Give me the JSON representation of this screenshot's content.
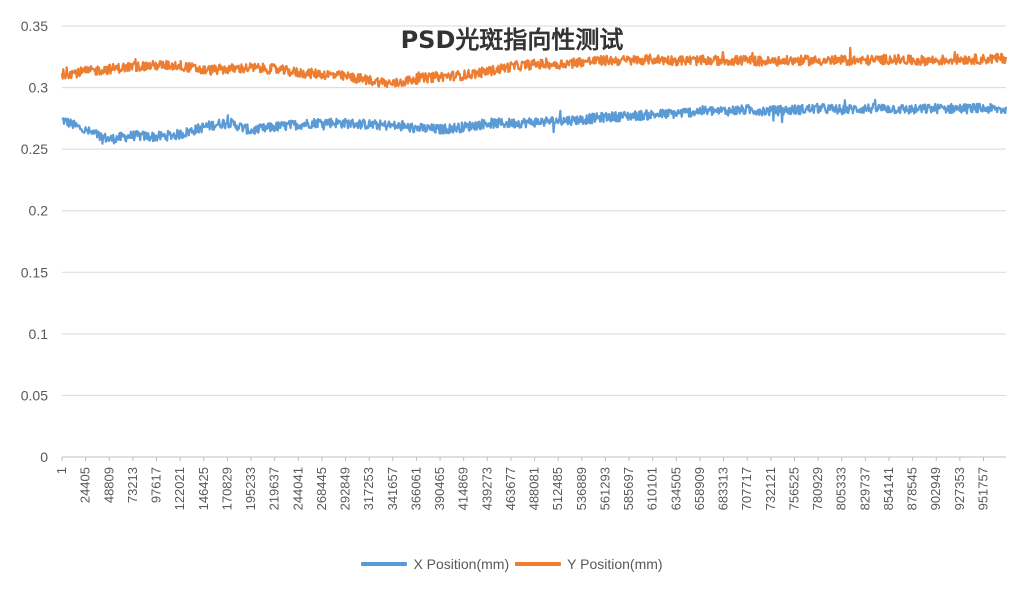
{
  "chart_data": {
    "type": "line",
    "title": "PSD光斑指向性测试",
    "xlabel": "",
    "ylabel": "",
    "ylim": [
      0,
      0.35
    ],
    "yticks": [
      "0",
      "0.05",
      "0.1",
      "0.15",
      "0.2",
      "0.25",
      "0.3",
      "0.35"
    ],
    "x_tick_labels": [
      "1",
      "24405",
      "48809",
      "73213",
      "97617",
      "122021",
      "146425",
      "170829",
      "195233",
      "219637",
      "244041",
      "268445",
      "292849",
      "317253",
      "341657",
      "366061",
      "390465",
      "414869",
      "439273",
      "463677",
      "488081",
      "512485",
      "536889",
      "561293",
      "585697",
      "610101",
      "634505",
      "658909",
      "683313",
      "707717",
      "732121",
      "756525",
      "780929",
      "805333",
      "829737",
      "854141",
      "878545",
      "902949",
      "927353",
      "951757"
    ],
    "x_range": [
      1,
      975000
    ],
    "series": [
      {
        "name": "X Position(mm)",
        "color": "#5b9bd5",
        "noise": 0.004,
        "x": [
          1,
          24405,
          48809,
          73213,
          97617,
          122021,
          146425,
          170829,
          195233,
          219637,
          244041,
          268445,
          292849,
          317253,
          341657,
          366061,
          390465,
          414869,
          439273,
          463677,
          488081,
          512485,
          536889,
          561293,
          585697,
          610101,
          634505,
          658909,
          683313,
          707717,
          732121,
          756525,
          780929,
          805333,
          829737,
          854141,
          878545,
          902949,
          927353,
          951757,
          975000
        ],
        "values": [
          0.274,
          0.265,
          0.258,
          0.261,
          0.26,
          0.262,
          0.268,
          0.272,
          0.265,
          0.268,
          0.27,
          0.272,
          0.271,
          0.27,
          0.269,
          0.267,
          0.266,
          0.268,
          0.271,
          0.271,
          0.272,
          0.273,
          0.274,
          0.276,
          0.277,
          0.278,
          0.279,
          0.281,
          0.281,
          0.282,
          0.281,
          0.282,
          0.283,
          0.282,
          0.283,
          0.283,
          0.282,
          0.283,
          0.283,
          0.283,
          0.282
        ]
      },
      {
        "name": "Y Position(mm)",
        "color": "#ed7d31",
        "noise": 0.004,
        "x": [
          1,
          24405,
          48809,
          73213,
          97617,
          122021,
          146425,
          170829,
          195233,
          219637,
          244041,
          268445,
          292849,
          317253,
          341657,
          366061,
          390465,
          414869,
          439273,
          463677,
          488081,
          512485,
          536889,
          561293,
          585697,
          610101,
          634505,
          658909,
          683313,
          707717,
          732121,
          756525,
          780929,
          805333,
          829737,
          854141,
          878545,
          902949,
          927353,
          951757,
          975000
        ],
        "values": [
          0.311,
          0.313,
          0.315,
          0.317,
          0.318,
          0.318,
          0.314,
          0.315,
          0.316,
          0.315,
          0.312,
          0.311,
          0.309,
          0.306,
          0.303,
          0.307,
          0.309,
          0.31,
          0.313,
          0.317,
          0.319,
          0.319,
          0.321,
          0.322,
          0.322,
          0.323,
          0.322,
          0.322,
          0.322,
          0.322,
          0.321,
          0.322,
          0.322,
          0.322,
          0.322,
          0.323,
          0.322,
          0.322,
          0.323,
          0.323,
          0.324
        ]
      }
    ],
    "legend_position": "bottom",
    "grid": true
  }
}
